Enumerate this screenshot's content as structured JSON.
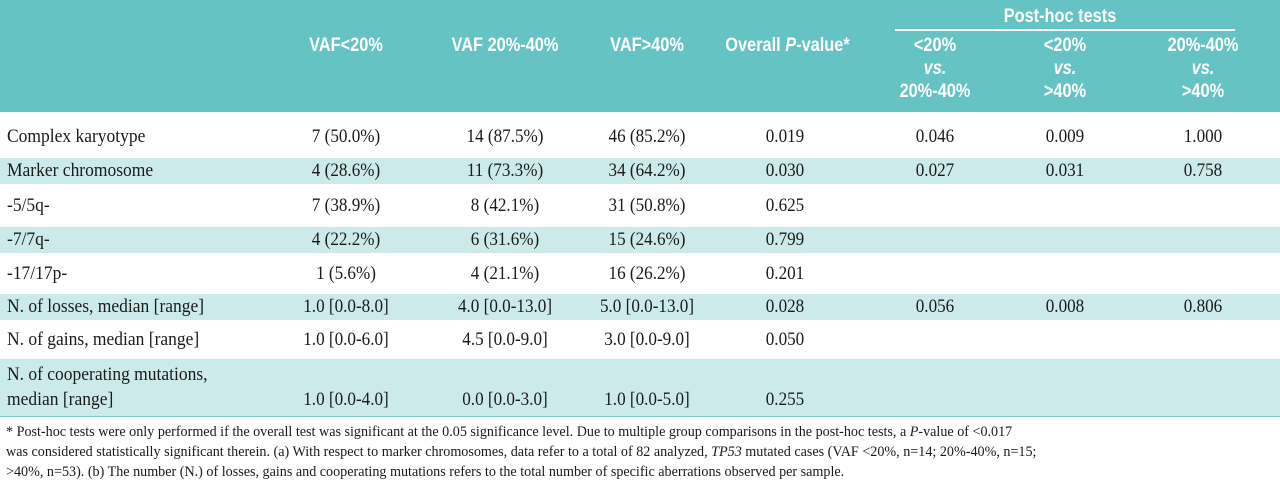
{
  "header": {
    "posthoc_title": "Post-hoc tests",
    "col_vaf_lt20": "VAF<20%",
    "col_vaf_20_40": "VAF 20%-40%",
    "col_vaf_gt40": "VAF>40%",
    "col_overall_pre": "Overall ",
    "col_overall_p": "P",
    "col_overall_post": "-value*",
    "ph1": [
      "<20%",
      "vs.",
      "20%-40%"
    ],
    "ph2": [
      "<20%",
      "vs.",
      ">40%"
    ],
    "ph3": [
      "20%-40%",
      "vs.",
      ">40%"
    ]
  },
  "rows": [
    {
      "label": "Complex karyotype",
      "v1": "7 (50.0%)",
      "v2": "14 (87.5%)",
      "v3": "46 (85.2%)",
      "p": "0.019",
      "ph1": "0.046",
      "ph2": "0.009",
      "ph3": "1.000"
    },
    {
      "label": "Marker chromosome",
      "v1": "4 (28.6%)",
      "v2": "11 (73.3%)",
      "v3": "34 (64.2%)",
      "p": "0.030",
      "ph1": "0.027",
      "ph2": "0.031",
      "ph3": "0.758"
    },
    {
      "label": "-5/5q-",
      "v1": "7 (38.9%)",
      "v2": "8 (42.1%)",
      "v3": "31 (50.8%)",
      "p": "0.625",
      "ph1": "",
      "ph2": "",
      "ph3": ""
    },
    {
      "label": "-7/7q-",
      "v1": "4 (22.2%)",
      "v2": "6 (31.6%)",
      "v3": "15 (24.6%)",
      "p": "0.799",
      "ph1": "",
      "ph2": "",
      "ph3": ""
    },
    {
      "label": "-17/17p-",
      "v1": "1 (5.6%)",
      "v2": "4 (21.1%)",
      "v3": "16 (26.2%)",
      "p": "0.201",
      "ph1": "",
      "ph2": "",
      "ph3": ""
    },
    {
      "label": "N. of losses, median [range]",
      "v1": "1.0 [0.0-8.0]",
      "v2": "4.0 [0.0-13.0]",
      "v3": "5.0 [0.0-13.0]",
      "p": "0.028",
      "ph1": "0.056",
      "ph2": "0.008",
      "ph3": "0.806"
    },
    {
      "label": "N. of gains, median [range]",
      "v1": "1.0 [0.0-6.0]",
      "v2": "4.5 [0.0-9.0]",
      "v3": "3.0 [0.0-9.0]",
      "p": "0.050",
      "ph1": "",
      "ph2": "",
      "ph3": ""
    },
    {
      "label": "N. of cooperating mutations,",
      "label2": "median [range]",
      "v1": "1.0 [0.0-4.0]",
      "v2": "0.0 [0.0-3.0]",
      "v3": "1.0 [0.0-5.0]",
      "p": "0.255",
      "ph1": "",
      "ph2": "",
      "ph3": ""
    }
  ],
  "footnote": {
    "line1_a": "* Post-hoc tests were only performed if the overall test was significant at the 0.05 significance level. Due to multiple group comparisons in the post-hoc tests, a ",
    "line1_p": "P",
    "line1_b": "-value of <0.017",
    "line2_a": "was considered statistically significant therein. (a) With respect to marker chromosomes, data refer to a total of 82 analyzed, ",
    "line2_tp53": "TP53",
    "line2_b": " mutated cases (VAF <20%, n=14; 20%-40%, n=15;",
    "line3": ">40%, n=53). (b) The number (N.) of losses, gains and cooperating mutations refers to the total number of specific aberrations observed per sample."
  },
  "colors": {
    "header_bg": "#66c3c4",
    "row_shade": "#cdeaea",
    "header_text": "#ffffff"
  }
}
